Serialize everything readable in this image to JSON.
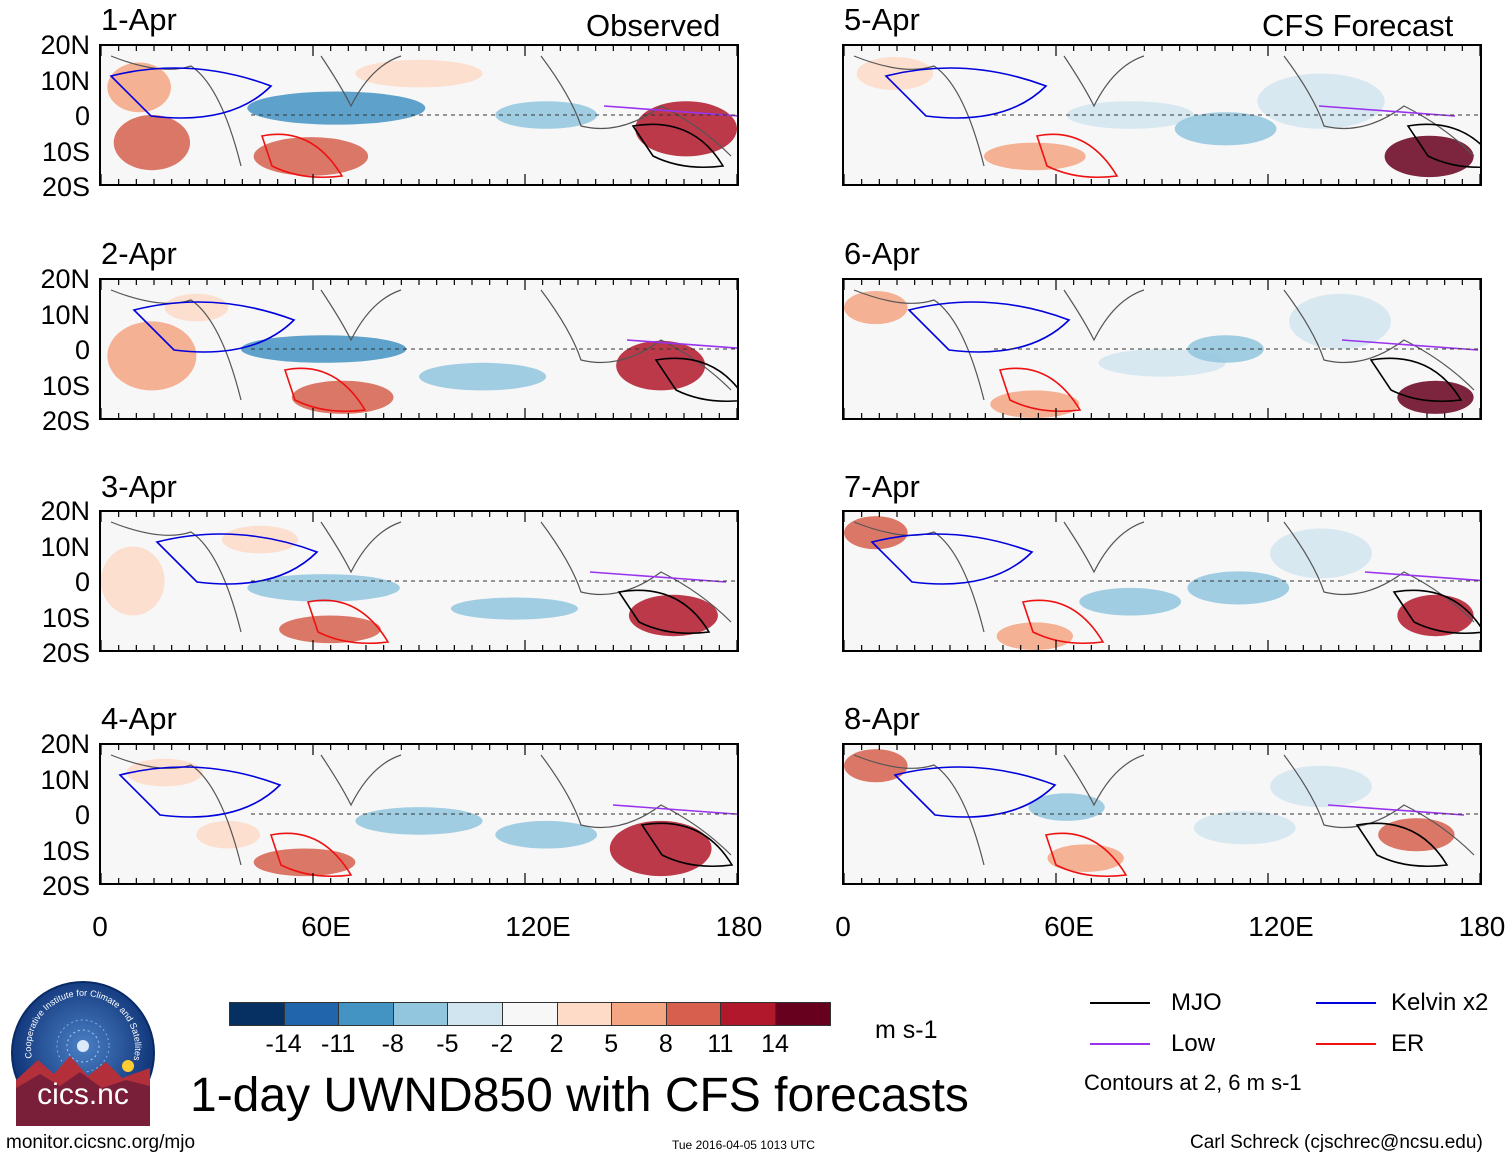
{
  "panels": {
    "p1": {
      "date": "1-Apr",
      "corner": "Observed"
    },
    "p2": {
      "date": "2-Apr"
    },
    "p3": {
      "date": "3-Apr"
    },
    "p4": {
      "date": "4-Apr"
    },
    "p5": {
      "date": "5-Apr",
      "corner": "CFS Forecast"
    },
    "p6": {
      "date": "6-Apr"
    },
    "p7": {
      "date": "7-Apr"
    },
    "p8": {
      "date": "8-Apr"
    }
  },
  "lat_labels": [
    "20N",
    "10N",
    "0",
    "10S",
    "20S"
  ],
  "lon_labels": [
    "0",
    "60E",
    "120E",
    "180"
  ],
  "colorbar": {
    "ticks": [
      "-14",
      "-11",
      "-8",
      "-5",
      "-2",
      "2",
      "5",
      "8",
      "11",
      "14"
    ],
    "colors": [
      "#053061",
      "#2166ac",
      "#4393c3",
      "#92c5de",
      "#d1e5f0",
      "#f7f7f7",
      "#fddbc7",
      "#f4a582",
      "#d6604d",
      "#b2182b",
      "#67001f"
    ],
    "units": "m s-1"
  },
  "title": "1-day UWND850 with CFS forecasts",
  "legend": {
    "mjo": {
      "label": "MJO",
      "color": "#000000"
    },
    "kelvin": {
      "label": "Kelvin x2",
      "color": "#0000dd"
    },
    "low": {
      "label": "Low",
      "color": "#9933ee"
    },
    "er": {
      "label": "ER",
      "color": "#ee1111"
    },
    "contours_note": "Contours at 2, 6 m s-1"
  },
  "logo": {
    "text": "cics.nc",
    "ring_text": "Cooperative Institute for Climate and Satellites"
  },
  "footer": {
    "url": "monitor.cicsnc.org/mjo",
    "timestamp": "Tue 2016-04-05 1013 UTC",
    "author": "Carl Schreck (cjschrec@ncsu.edu)"
  }
}
